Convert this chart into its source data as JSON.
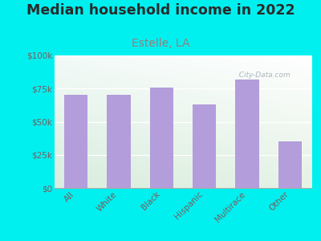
{
  "title": "Median household income in 2022",
  "subtitle": "Estelle, LA",
  "categories": [
    "All",
    "White",
    "Black",
    "Hispanic",
    "Multirace",
    "Other"
  ],
  "values": [
    70000,
    70000,
    76000,
    63000,
    82000,
    35000
  ],
  "bar_color": "#b39ddb",
  "background_outer": "#00f0f0",
  "title_fontsize": 12.5,
  "subtitle_fontsize": 10,
  "subtitle_color": "#9e7b7b",
  "tick_label_color": "#7a5c5c",
  "ylim": [
    0,
    100000
  ],
  "yticks": [
    0,
    25000,
    50000,
    75000,
    100000
  ],
  "ytick_labels": [
    "$0",
    "$25k",
    "$50k",
    "$75k",
    "$100k"
  ],
  "watermark": "  City-Data.com"
}
